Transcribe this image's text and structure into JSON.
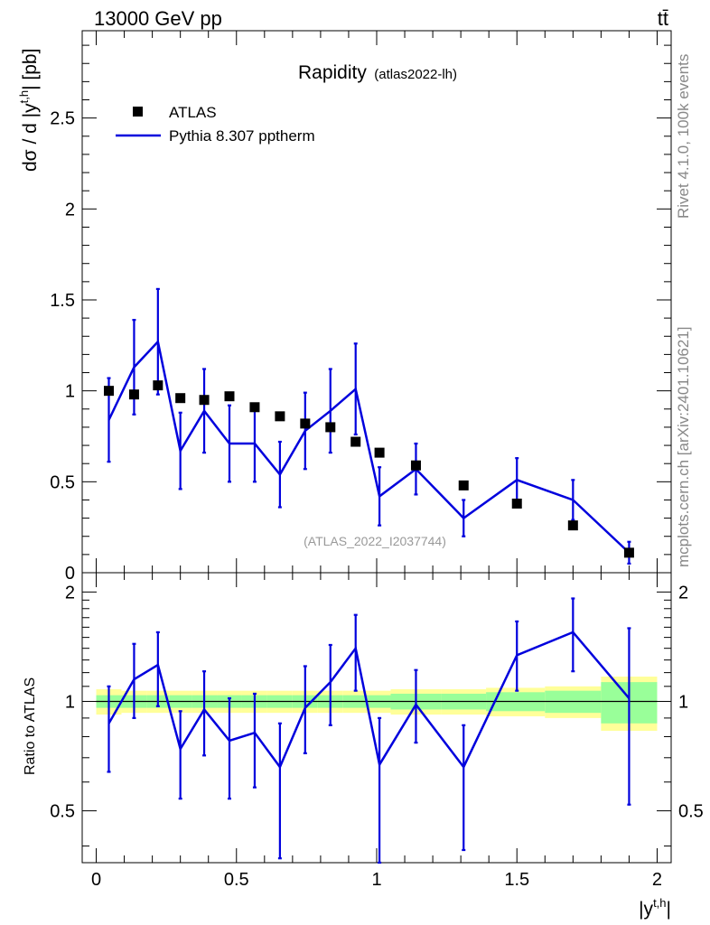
{
  "header": {
    "beam": "13000 GeV pp",
    "process": "tt̄"
  },
  "side_labels": {
    "rivet": "Rivet 4.1.0,  100k events",
    "mcplots": "mcplots.cern.ch [arXiv:2401.10621]"
  },
  "chart_data": {
    "type": "line",
    "title": "Rapidity",
    "subtitle": "(atlas2022-lh)",
    "watermark": "(ATLAS_2022_I2037744)",
    "xlabel": "|y",
    "xlabel_sup": "t,h",
    "xlabel_close": "|",
    "ylabel": "dσ / d |y",
    "ylabel_sup": "t,h",
    "ylabel_close": "| [pb]",
    "xlim": [
      -0.05,
      2.05
    ],
    "ylim": [
      0,
      2.98
    ],
    "x_ticks": [
      {
        "v": 0,
        "label": "0"
      },
      {
        "v": 0.5,
        "label": "0.5"
      },
      {
        "v": 1,
        "label": "1"
      },
      {
        "v": 1.5,
        "label": "1.5"
      },
      {
        "v": 2,
        "label": "2"
      }
    ],
    "y_ticks": [
      {
        "v": 0,
        "label": "0"
      },
      {
        "v": 0.5,
        "label": "0.5"
      },
      {
        "v": 1,
        "label": "1"
      },
      {
        "v": 1.5,
        "label": "1.5"
      },
      {
        "v": 2,
        "label": "2"
      },
      {
        "v": 2.5,
        "label": "2.5"
      }
    ],
    "legend": [
      {
        "name": "ATLAS",
        "style": "marker"
      },
      {
        "name": "Pythia 8.307 pptherm",
        "style": "line"
      }
    ],
    "colors": {
      "data": "#000000",
      "mc": "#0000dd",
      "band_inner": "#99ff99",
      "band_outer": "#ffff99"
    },
    "series": [
      {
        "name": "ATLAS",
        "x": [
          0.045,
          0.135,
          0.22,
          0.3,
          0.385,
          0.475,
          0.565,
          0.655,
          0.745,
          0.835,
          0.925,
          1.01,
          1.14,
          1.31,
          1.5,
          1.7,
          1.9
        ],
        "values": [
          1.0,
          0.98,
          1.03,
          0.96,
          0.95,
          0.97,
          0.91,
          0.86,
          0.82,
          0.8,
          0.72,
          0.66,
          0.59,
          0.48,
          0.38,
          0.26,
          0.11
        ],
        "rel_err_inner": [
          0.04,
          0.04,
          0.04,
          0.04,
          0.04,
          0.04,
          0.04,
          0.04,
          0.04,
          0.04,
          0.04,
          0.04,
          0.05,
          0.05,
          0.06,
          0.07,
          0.13
        ],
        "rel_err_outer": [
          0.08,
          0.07,
          0.07,
          0.07,
          0.07,
          0.07,
          0.07,
          0.07,
          0.07,
          0.07,
          0.07,
          0.07,
          0.08,
          0.08,
          0.09,
          0.1,
          0.17
        ]
      },
      {
        "name": "Pythia 8.307 pptherm",
        "x": [
          0.045,
          0.135,
          0.22,
          0.3,
          0.385,
          0.475,
          0.565,
          0.655,
          0.745,
          0.835,
          0.925,
          1.01,
          1.14,
          1.31,
          1.5,
          1.7,
          1.9
        ],
        "values": [
          0.84,
          1.13,
          1.27,
          0.67,
          0.89,
          0.71,
          0.71,
          0.54,
          0.78,
          0.89,
          1.01,
          0.42,
          0.57,
          0.3,
          0.51,
          0.4,
          0.11
        ],
        "errors": [
          0.23,
          0.26,
          0.29,
          0.21,
          0.23,
          0.21,
          0.21,
          0.18,
          0.21,
          0.23,
          0.25,
          0.16,
          0.14,
          0.1,
          0.12,
          0.11,
          0.06
        ]
      }
    ],
    "bin_edges": [
      0,
      0.09,
      0.18,
      0.26,
      0.34,
      0.43,
      0.52,
      0.61,
      0.7,
      0.79,
      0.88,
      0.97,
      1.05,
      1.23,
      1.39,
      1.6,
      1.8,
      2.0
    ],
    "ratio": {
      "ylabel": "Ratio to ATLAS",
      "ylim": [
        0.36,
        2.26
      ],
      "y_ticks": [
        {
          "v": 0.5,
          "label": "0.5"
        },
        {
          "v": 1,
          "label": "1"
        },
        {
          "v": 2,
          "label": "2"
        }
      ],
      "values": [
        0.87,
        1.15,
        1.26,
        0.74,
        0.95,
        0.78,
        0.82,
        0.66,
        0.96,
        1.13,
        1.4,
        0.67,
        0.98,
        0.66,
        1.34,
        1.55,
        1.02
      ],
      "err_up": [
        0.23,
        0.29,
        0.29,
        0.2,
        0.26,
        0.24,
        0.23,
        0.21,
        0.29,
        0.3,
        0.33,
        0.23,
        0.24,
        0.2,
        0.32,
        0.37,
        0.57
      ],
      "err_down": [
        0.23,
        0.25,
        0.29,
        0.2,
        0.24,
        0.24,
        0.24,
        0.29,
        0.24,
        0.27,
        0.33,
        0.33,
        0.21,
        0.27,
        0.27,
        0.34,
        0.5
      ]
    }
  }
}
